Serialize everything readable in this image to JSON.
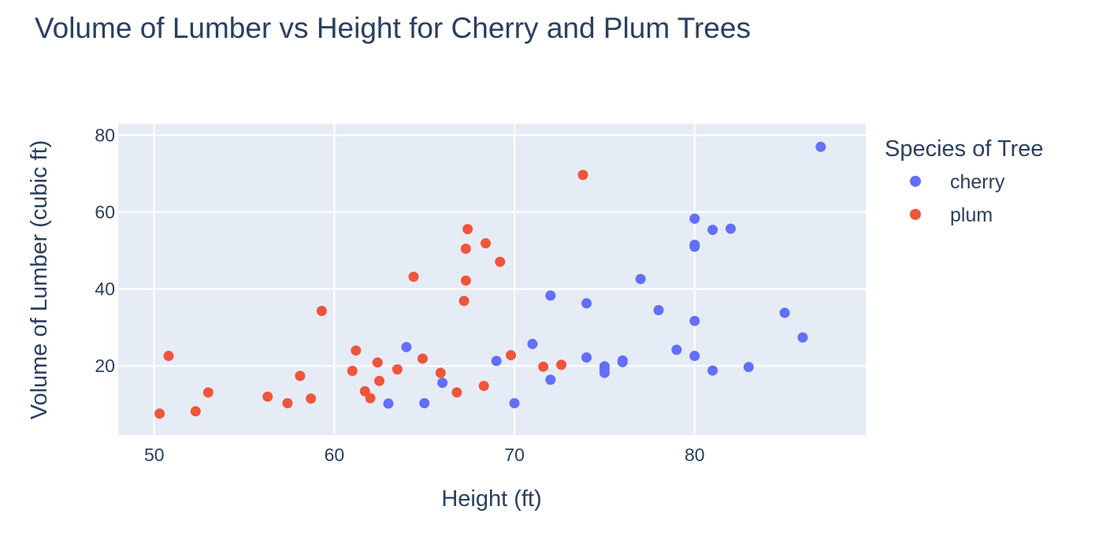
{
  "chart_data": {
    "type": "scatter",
    "title": "Volume of Lumber vs Height for Cherry and Plum Trees",
    "xlabel": "Height (ft)",
    "ylabel": "Volume of Lumber (cubic ft)",
    "xlim": [
      48,
      89.5
    ],
    "ylim": [
      2,
      83
    ],
    "xticks": [
      50,
      60,
      70,
      80
    ],
    "yticks": [
      20,
      40,
      60,
      80
    ],
    "grid": true,
    "legend_title": "Species of Tree",
    "legend_position": "right",
    "plot_bgcolor": "#e5ecf6",
    "series": [
      {
        "name": "cherry",
        "color": "#636efa",
        "points": [
          [
            70,
            10.3
          ],
          [
            65,
            10.3
          ],
          [
            63,
            10.2
          ],
          [
            72,
            16.4
          ],
          [
            81,
            18.8
          ],
          [
            83,
            19.7
          ],
          [
            66,
            15.6
          ],
          [
            75,
            18.2
          ],
          [
            80,
            22.6
          ],
          [
            75,
            19.9
          ],
          [
            79,
            24.2
          ],
          [
            76,
            21.0
          ],
          [
            76,
            21.4
          ],
          [
            69,
            21.3
          ],
          [
            75,
            19.1
          ],
          [
            74,
            22.2
          ],
          [
            85,
            33.8
          ],
          [
            86,
            27.4
          ],
          [
            71,
            25.7
          ],
          [
            64,
            24.9
          ],
          [
            78,
            34.5
          ],
          [
            80,
            31.7
          ],
          [
            74,
            36.3
          ],
          [
            72,
            38.3
          ],
          [
            77,
            42.6
          ],
          [
            81,
            55.4
          ],
          [
            82,
            55.7
          ],
          [
            80,
            58.3
          ],
          [
            80,
            51.5
          ],
          [
            80,
            51.0
          ],
          [
            87,
            77.0
          ]
        ]
      },
      {
        "name": "plum",
        "color": "#ef553b",
        "points": [
          [
            50.3,
            7.6
          ],
          [
            52.3,
            8.2
          ],
          [
            50.8,
            22.6
          ],
          [
            53.0,
            13.1
          ],
          [
            56.3,
            12.0
          ],
          [
            57.4,
            10.3
          ],
          [
            58.1,
            17.4
          ],
          [
            58.7,
            11.5
          ],
          [
            59.3,
            34.3
          ],
          [
            61.0,
            18.7
          ],
          [
            61.2,
            24.0
          ],
          [
            61.7,
            13.4
          ],
          [
            62.0,
            11.6
          ],
          [
            62.4,
            20.9
          ],
          [
            62.5,
            16.1
          ],
          [
            63.5,
            19.1
          ],
          [
            64.4,
            43.2
          ],
          [
            64.9,
            21.9
          ],
          [
            65.9,
            18.2
          ],
          [
            66.8,
            13.1
          ],
          [
            67.2,
            36.9
          ],
          [
            67.3,
            50.5
          ],
          [
            67.3,
            42.2
          ],
          [
            67.4,
            55.6
          ],
          [
            68.3,
            14.8
          ],
          [
            68.4,
            51.9
          ],
          [
            69.2,
            47.1
          ],
          [
            69.8,
            22.8
          ],
          [
            71.6,
            19.8
          ],
          [
            72.6,
            20.3
          ],
          [
            73.8,
            69.7
          ]
        ]
      }
    ]
  }
}
